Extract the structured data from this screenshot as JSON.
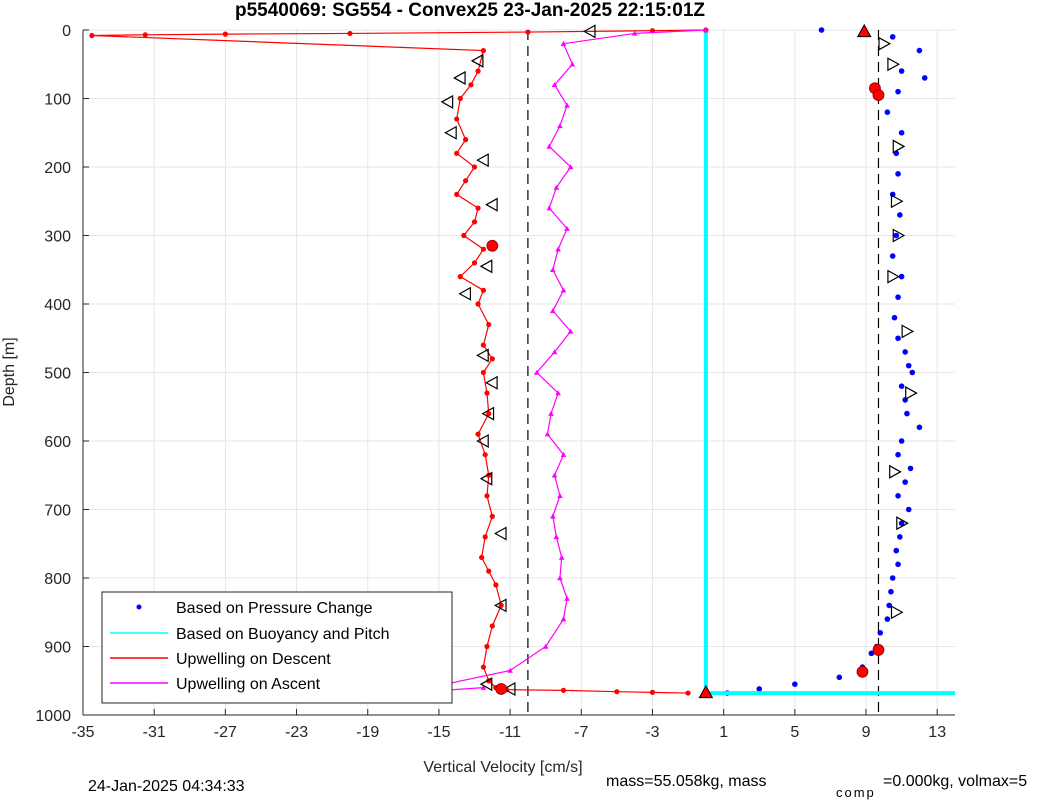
{
  "chart_data": {
    "type": "line",
    "title": "p5540069: SG554 - Convex25 23-Jan-2025 22:15:01Z",
    "xlabel": "Vertical Velocity [cm/s]",
    "ylabel": "Depth [m]",
    "xlim": [
      -35,
      14
    ],
    "ylim": [
      0,
      1000
    ],
    "y_reversed": true,
    "grid": true,
    "xticks": [
      "-35",
      "-31",
      "-27",
      "-23",
      "-19",
      "-15",
      "-11",
      "-7",
      "-3",
      "1",
      "5",
      "9",
      "13"
    ],
    "yticks": [
      "0",
      "100",
      "200",
      "300",
      "400",
      "500",
      "600",
      "700",
      "800",
      "900",
      "1000"
    ],
    "legend_position": "bottom-left",
    "series": [
      {
        "name": "Based on Pressure Change",
        "style": "dots",
        "color": "#0000ff",
        "x": [
          6.5,
          10.5,
          12.0,
          11.0,
          12.3,
          10.8,
          10.2,
          11.0,
          10.7,
          10.8,
          10.5,
          10.9,
          10.7,
          10.5,
          11.0,
          10.8,
          10.6,
          10.8,
          11.2,
          11.4,
          11.0,
          11.2,
          11.6,
          11.3,
          12.0,
          11.0,
          10.8,
          11.5,
          11.2,
          10.8,
          11.4,
          11.0,
          10.9,
          10.7,
          10.8,
          10.5,
          10.4,
          10.3,
          10.2,
          9.8,
          9.6,
          9.3,
          8.8,
          7.5,
          5.0,
          3.0,
          1.2
        ],
        "y": [
          0,
          10,
          30,
          60,
          70,
          90,
          120,
          150,
          180,
          210,
          240,
          270,
          300,
          330,
          360,
          390,
          420,
          450,
          470,
          490,
          520,
          540,
          500,
          560,
          580,
          600,
          620,
          640,
          660,
          680,
          700,
          720,
          740,
          760,
          780,
          800,
          820,
          840,
          860,
          880,
          900,
          910,
          930,
          945,
          955,
          962,
          968
        ]
      },
      {
        "name": "Based on Buoyancy and Pitch",
        "style": "line",
        "color": "#00ffff",
        "x": [
          0.0,
          0.0,
          0.0,
          14.0
        ],
        "y": [
          0,
          500,
          968,
          968
        ]
      },
      {
        "name": "Upwelling on Descent",
        "style": "line-dots",
        "color": "#ff0000",
        "x": [
          0.0,
          -3.0,
          -10.0,
          -20.0,
          -27.0,
          -31.5,
          -34.5,
          -12.5,
          -12.8,
          -13.2,
          -13.8,
          -14.0,
          -13.5,
          -14.0,
          -13.0,
          -13.5,
          -14.0,
          -12.8,
          -13.0,
          -13.6,
          -12.5,
          -13.0,
          -13.8,
          -12.5,
          -12.8,
          -12.2,
          -12.5,
          -12.0,
          -12.5,
          -12.3,
          -12.2,
          -12.8,
          -12.4,
          -12.2,
          -12.3,
          -12.0,
          -12.4,
          -12.6,
          -12.2,
          -11.8,
          -11.5,
          -12.0,
          -12.3,
          -12.5,
          -12.2,
          -11.8,
          -11.2,
          -8.0,
          -5.0,
          -3.0,
          -1.0
        ],
        "y": [
          0,
          1,
          3,
          5,
          6,
          7,
          8,
          30,
          60,
          80,
          100,
          130,
          160,
          180,
          200,
          220,
          240,
          260,
          280,
          300,
          320,
          340,
          360,
          380,
          400,
          430,
          460,
          480,
          500,
          530,
          560,
          590,
          620,
          650,
          680,
          710,
          740,
          770,
          790,
          810,
          840,
          870,
          900,
          930,
          950,
          960,
          963,
          964,
          966,
          967,
          968
        ]
      },
      {
        "name": "Upwelling on Ascent",
        "style": "line-triangles",
        "color": "#ff00ff",
        "x": [
          0.0,
          -4.0,
          -8.0,
          -7.5,
          -8.5,
          -7.8,
          -8.2,
          -8.8,
          -7.6,
          -8.4,
          -8.8,
          -7.8,
          -8.3,
          -8.6,
          -8.0,
          -8.6,
          -7.6,
          -8.5,
          -9.5,
          -8.3,
          -8.7,
          -8.9,
          -8.0,
          -8.5,
          -8.2,
          -8.6,
          -8.4,
          -8.1,
          -8.2,
          -7.8,
          -8.0,
          -9.0,
          -11.0,
          -17.0,
          -12.5
        ],
        "y": [
          0,
          5,
          20,
          50,
          80,
          110,
          140,
          170,
          200,
          230,
          260,
          290,
          320,
          350,
          380,
          410,
          440,
          470,
          500,
          530,
          560,
          590,
          620,
          650,
          680,
          710,
          740,
          770,
          800,
          830,
          860,
          900,
          935,
          968,
          960
        ]
      }
    ],
    "reference_lines": [
      {
        "style": "dashed",
        "color": "#000000",
        "x": -10.0
      },
      {
        "style": "dashed",
        "color": "#000000",
        "x": 9.7
      }
    ],
    "markers": {
      "red_triangles": [
        {
          "x": 8.9,
          "y": 2
        },
        {
          "x": 0.0,
          "y": 967
        }
      ],
      "red_circles": [
        {
          "x": 9.5,
          "y": 85
        },
        {
          "x": 9.7,
          "y": 95
        },
        {
          "x": 9.7,
          "y": 905
        },
        {
          "x": 8.8,
          "y": 937
        },
        {
          "x": -11.5,
          "y": 962
        },
        {
          "x": -12.0,
          "y": 315
        }
      ],
      "black_triangles": [
        {
          "x": -6.5,
          "y": 2
        },
        {
          "x": -12.8,
          "y": 45
        },
        {
          "x": -13.8,
          "y": 70
        },
        {
          "x": -14.5,
          "y": 105
        },
        {
          "x": -14.3,
          "y": 150
        },
        {
          "x": -12.5,
          "y": 190
        },
        {
          "x": -12.0,
          "y": 255
        },
        {
          "x": -12.3,
          "y": 345
        },
        {
          "x": -13.5,
          "y": 385
        },
        {
          "x": -12.5,
          "y": 475
        },
        {
          "x": -12.0,
          "y": 515
        },
        {
          "x": -12.2,
          "y": 560
        },
        {
          "x": -12.5,
          "y": 600
        },
        {
          "x": -12.3,
          "y": 655
        },
        {
          "x": -11.5,
          "y": 735
        },
        {
          "x": -11.5,
          "y": 840
        },
        {
          "x": -12.3,
          "y": 955
        },
        {
          "x": -11.0,
          "y": 962
        },
        {
          "x": 10.0,
          "y": 20
        },
        {
          "x": 10.5,
          "y": 50
        },
        {
          "x": 10.8,
          "y": 170
        },
        {
          "x": 10.7,
          "y": 250
        },
        {
          "x": 10.8,
          "y": 300
        },
        {
          "x": 10.5,
          "y": 360
        },
        {
          "x": 11.3,
          "y": 440
        },
        {
          "x": 11.5,
          "y": 530
        },
        {
          "x": 10.6,
          "y": 645
        },
        {
          "x": 11.0,
          "y": 720
        },
        {
          "x": 10.7,
          "y": 850
        }
      ]
    }
  },
  "legend": {
    "items": [
      {
        "label": "Based on Pressure Change",
        "color": "#0000ff",
        "style": "dot"
      },
      {
        "label": "Based on Buoyancy and Pitch",
        "color": "#00ffff",
        "style": "line"
      },
      {
        "label": "Upwelling on Descent",
        "color": "#ff0000",
        "style": "line"
      },
      {
        "label": "Upwelling on Ascent",
        "color": "#ff00ff",
        "style": "line"
      }
    ]
  },
  "footer": {
    "timestamp": "24-Jan-2025 04:34:33",
    "mass_text": "mass=55.058kg, mass",
    "comp_subscript": "comp",
    "comp_text": "=0.000kg, volmax=5"
  }
}
